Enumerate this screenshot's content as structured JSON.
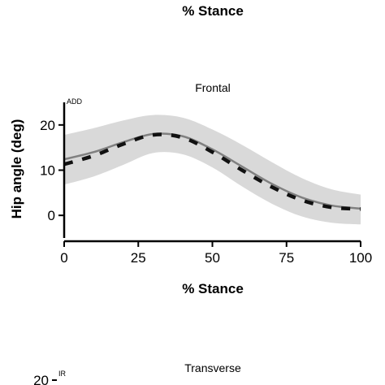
{
  "top_caption": "% Stance",
  "chart_data": [
    {
      "type": "line",
      "title": "Frontal",
      "xlabel": "% Stance",
      "ylabel": "Hip angle (deg)",
      "direction_label": "ADD",
      "xlim": [
        0,
        100
      ],
      "ylim": [
        -5,
        25
      ],
      "x_ticks": [
        0,
        25,
        50,
        75,
        100
      ],
      "y_ticks": [
        0,
        10,
        20
      ],
      "grid": false,
      "legend": "none",
      "colors": {
        "mean_line": "#808080",
        "band": "#d9d9d9",
        "dashed_line": "#111111"
      },
      "x": [
        0,
        10,
        20,
        30,
        40,
        50,
        60,
        70,
        80,
        90,
        100
      ],
      "series": [
        {
          "style": "solid",
          "values": [
            12.4,
            14.0,
            16.2,
            18.0,
            17.5,
            14.6,
            10.8,
            7.0,
            4.0,
            2.2,
            1.5
          ]
        },
        {
          "style": "dashed",
          "values": [
            11.3,
            13.2,
            15.8,
            17.8,
            17.2,
            14.0,
            10.0,
            6.3,
            3.4,
            1.8,
            1.4
          ]
        }
      ],
      "band": {
        "upper": [
          17.8,
          19.3,
          21.0,
          22.2,
          21.6,
          19.0,
          15.6,
          11.8,
          8.3,
          5.8,
          4.6
        ],
        "lower": [
          6.8,
          8.6,
          11.2,
          13.8,
          13.5,
          10.6,
          6.4,
          2.6,
          -0.2,
          -1.6,
          -2.0
        ]
      }
    },
    {
      "type": "line",
      "title": "Transverse",
      "direction_label": "IR",
      "y_ticks_visible": [
        20
      ]
    }
  ]
}
